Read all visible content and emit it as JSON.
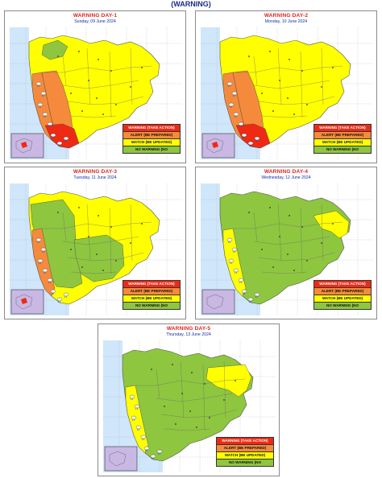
{
  "header": {
    "title": "(WARNING)"
  },
  "colors": {
    "take_action": "#ee2a14",
    "be_prepared": "#f58a3c",
    "be_updated": "#ffff00",
    "no_warning": "#8ec63f",
    "sea": "#cfe6fb",
    "karnataka_box": "#c9b8e4"
  },
  "legend": {
    "take_action": "WARNING (TAKE ACTION)",
    "be_prepared": "ALERT (BE PREPARED)",
    "be_updated": "WATCH (BE UPDATED)",
    "no_warning": "NO WARNING (NO"
  },
  "panels": [
    {
      "title": "WARNING DAY-1",
      "date": "Sunday,  09 June 2024",
      "base_level": "be_updated",
      "zones": [
        {
          "region": "konkan",
          "level": "be_prepared"
        },
        {
          "region": "ghats",
          "level": "be_prepared"
        },
        {
          "region": "south",
          "level": "take_action"
        },
        {
          "region": "northwest",
          "level": "no_warning"
        }
      ]
    },
    {
      "title": "WARNING DAY-2",
      "date": "Monday,  10 June 2024",
      "base_level": "be_updated",
      "zones": [
        {
          "region": "konkan",
          "level": "be_prepared"
        },
        {
          "region": "ghats",
          "level": "be_prepared"
        },
        {
          "region": "south",
          "level": "take_action"
        }
      ]
    },
    {
      "title": "WARNING DAY-3",
      "date": "Tuesday,  11 June 2024",
      "base_level": "be_updated",
      "zones": [
        {
          "region": "west",
          "level": "no_warning"
        },
        {
          "region": "konkan",
          "level": "be_prepared"
        },
        {
          "region": "marathwada",
          "level": "no_warning"
        }
      ]
    },
    {
      "title": "WARNING DAY-4",
      "date": "Wednesday,  12 June 2024",
      "base_level": "no_warning",
      "zones": [
        {
          "region": "konkan",
          "level": "be_updated"
        },
        {
          "region": "east",
          "level": "be_updated"
        }
      ]
    },
    {
      "title": "WARNING DAY-5",
      "date": "Thursday,  13 June 2024",
      "base_level": "no_warning",
      "zones": [
        {
          "region": "konkan",
          "level": "be_updated"
        },
        {
          "region": "vidarbha",
          "level": "be_updated"
        }
      ]
    }
  ]
}
